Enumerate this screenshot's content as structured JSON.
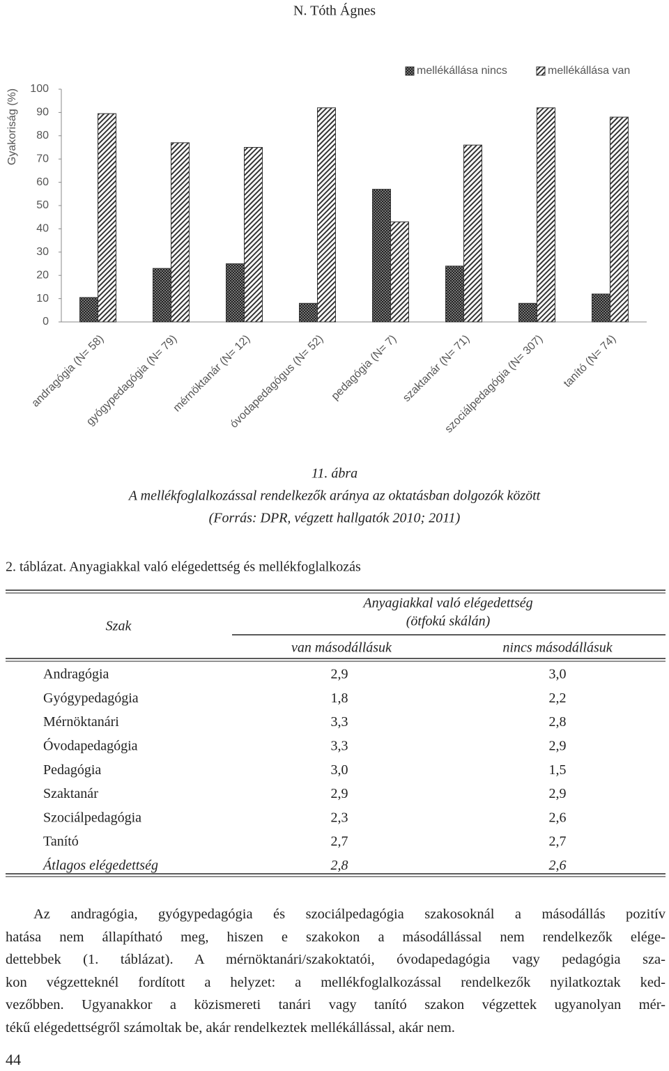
{
  "header": {
    "author": "N. Tóth Ágnes"
  },
  "chart_data": {
    "type": "bar",
    "y_label": "Gyakoriság (%)",
    "categories": [
      "andragógia (N= 58)",
      "gyógypedagógia (N= 79)",
      "mérnöktanár (N= 12)",
      "óvodapedagógus (N= 52)",
      "pedagógia (N= 7)",
      "szaktanár (N= 71)",
      "szociálpedagógia (N= 307)",
      "tanító (N= 74)"
    ],
    "series": [
      {
        "name": "mellékállása nincs",
        "color": "#333333",
        "pattern": "checker",
        "values": [
          10.5,
          23,
          25,
          8,
          57,
          24,
          8,
          12
        ]
      },
      {
        "name": "mellékállása van",
        "color": "#333333",
        "pattern": "hatch",
        "values": [
          89.5,
          77,
          75,
          92,
          43,
          76,
          92,
          88
        ]
      }
    ],
    "ylim": [
      0,
      100
    ],
    "yticks": [
      0,
      10,
      20,
      30,
      40,
      50,
      60,
      70,
      80,
      90,
      100
    ],
    "grid": false,
    "legend": "top-right"
  },
  "caption": {
    "number": "11. ábra",
    "title": "A mellékfoglalkozással rendelkezők aránya az oktatásban dolgozók között",
    "source": "(Forrás: DPR, végzett hallgatók 2010; 2011)"
  },
  "table": {
    "title": "2. táblázat. Anyagiakkal való elégedettség és mellékfoglalkozás",
    "header": {
      "row_label": "Szak",
      "group": "Anyagiakkal való elégedettség",
      "group_note": "(ötfokú skálán)",
      "columns": [
        "van másodállásuk",
        "nincs másodállásuk"
      ]
    },
    "rows": [
      [
        "Andragógia",
        "2,9",
        "3,0"
      ],
      [
        "Gyógypedagógia",
        "1,8",
        "2,2"
      ],
      [
        "Mérnöktanári",
        "3,3",
        "2,8"
      ],
      [
        "Óvodapedagógia",
        "3,3",
        "2,9"
      ],
      [
        "Pedagógia",
        "3,0",
        "1,5"
      ],
      [
        "Szaktanár",
        "2,9",
        "2,9"
      ],
      [
        "Szociálpedagógia",
        "2,3",
        "2,6"
      ],
      [
        "Tanító",
        "2,7",
        "2,7"
      ]
    ],
    "footer": [
      "Átlagos elégedettség",
      "2,8",
      "2,6"
    ]
  },
  "paragraph": {
    "lines": [
      "Az andragógia, gyógypedagógia és szociálpedagógia szakosoknál a másodállás pozitív",
      "hatása nem állapítható meg, hiszen e szakokon a másodállással nem rendelkezők elége-",
      "dettebbek (1. táblázat). A mérnöktanári/szakoktatói, óvodapedagógia vagy pedagógia sza-",
      "kon végzetteknél fordított a helyzet: a mellékfoglalkozással rendelkezők nyilatkoztak ked-",
      "vezőbben. Ugyanakkor a közismereti tanári vagy tanító szakon végzettek ugyanolyan mér-",
      "tékű elégedettségről számoltak be, akár rendelkeztek mellékállással, akár nem."
    ]
  },
  "page_number": "44"
}
